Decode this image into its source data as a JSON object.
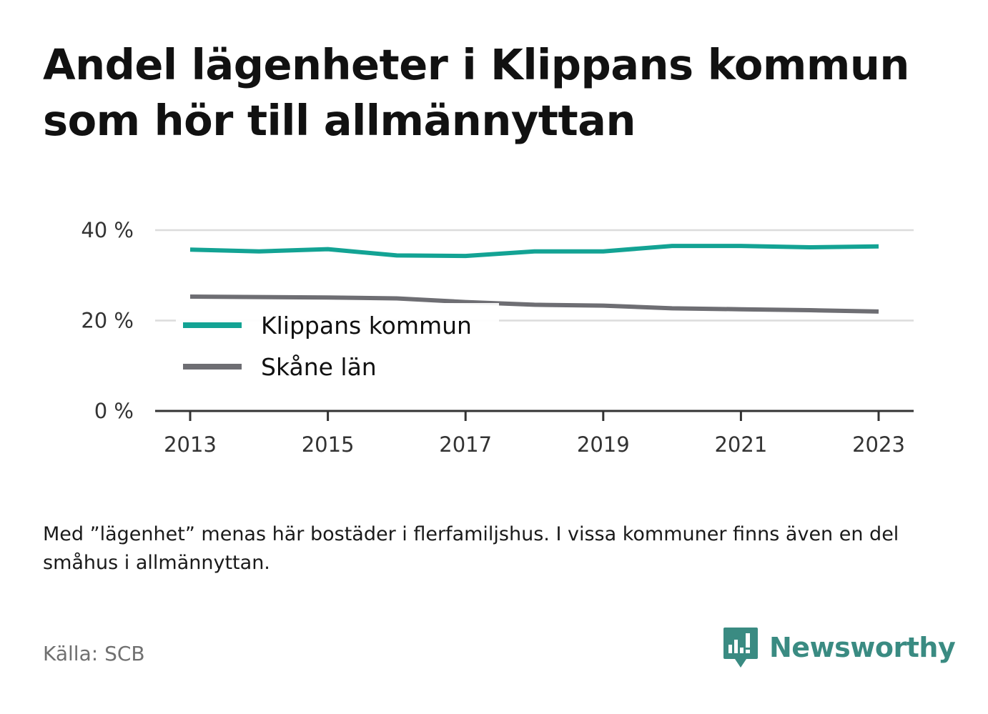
{
  "title": "Andel lägenheter i Klippans kommun som hör till allmännyttan",
  "note": "Med ”lägenhet” menas här bostäder i flerfamiljshus. I vissa kommuner finns även en del småhus i allmännyttan.",
  "source": "Källa: SCB",
  "brand": {
    "name": "Newsworthy",
    "logo_icon": "bar-chart-speech-bubble-icon",
    "color": "#3a8b82"
  },
  "chart_data": {
    "type": "line",
    "x": [
      2013,
      2014,
      2015,
      2016,
      2017,
      2018,
      2019,
      2020,
      2021,
      2022,
      2023
    ],
    "series": [
      {
        "name": "Klippans kommun",
        "color": "#13a394",
        "values": [
          35.7,
          35.3,
          35.8,
          34.4,
          34.3,
          35.3,
          35.3,
          36.5,
          36.5,
          36.2,
          36.4
        ]
      },
      {
        "name": "Skåne län",
        "color": "#6e6e73",
        "values": [
          25.3,
          25.2,
          25.1,
          24.9,
          24.1,
          23.5,
          23.3,
          22.7,
          22.5,
          22.3,
          22.0
        ]
      }
    ],
    "xticks": [
      "2013",
      "2015",
      "2017",
      "2019",
      "2021",
      "2023"
    ],
    "yticks": [
      "0 %",
      "20 %",
      "40 %"
    ],
    "ylim": [
      0,
      40
    ],
    "grid": true,
    "legend": "left-inside"
  }
}
